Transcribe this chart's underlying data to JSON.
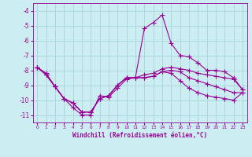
{
  "xlabel": "Windchill (Refroidissement éolien,°C)",
  "bg_color": "#cceef2",
  "grid_color": "#aad8de",
  "line_color": "#990099",
  "xlim": [
    -0.5,
    23.5
  ],
  "ylim": [
    -11.5,
    -3.5
  ],
  "yticks": [
    -11,
    -10,
    -9,
    -8,
    -7,
    -6,
    -5,
    -4
  ],
  "xticks": [
    0,
    1,
    2,
    3,
    4,
    5,
    6,
    7,
    8,
    9,
    10,
    11,
    12,
    13,
    14,
    15,
    16,
    17,
    18,
    19,
    20,
    21,
    22,
    23
  ],
  "line1_x": [
    0,
    1,
    2,
    3,
    4,
    5,
    6,
    7,
    8,
    9,
    10,
    11,
    12,
    13,
    14,
    15,
    16,
    17,
    18,
    19,
    20,
    21,
    22,
    23
  ],
  "line1_y": [
    -7.8,
    -8.2,
    -9.1,
    -9.9,
    -10.5,
    -11.0,
    -11.0,
    -9.7,
    -9.8,
    -9.2,
    -8.6,
    -8.5,
    -5.2,
    -4.8,
    -4.3,
    -6.2,
    -7.0,
    -7.1,
    -7.5,
    -8.0,
    -8.0,
    -8.1,
    -8.5,
    -9.3
  ],
  "line2_x": [
    0,
    1,
    2,
    3,
    4,
    5,
    6,
    7,
    8,
    9,
    10,
    11,
    12,
    13,
    14,
    15,
    16,
    17,
    18,
    19,
    20,
    21,
    22,
    23
  ],
  "line2_y": [
    -7.8,
    -8.3,
    -9.1,
    -9.9,
    -10.2,
    -10.8,
    -10.8,
    -9.9,
    -9.7,
    -9.0,
    -8.5,
    -8.5,
    -8.3,
    -8.2,
    -7.9,
    -7.8,
    -7.9,
    -8.0,
    -8.2,
    -8.3,
    -8.4,
    -8.5,
    -8.6,
    -9.3
  ],
  "line3_x": [
    0,
    1,
    2,
    3,
    4,
    5,
    6,
    7,
    8,
    9,
    10,
    11,
    12,
    13,
    14,
    15,
    16,
    17,
    18,
    19,
    20,
    21,
    22,
    23
  ],
  "line3_y": [
    -7.8,
    -8.3,
    -9.1,
    -9.9,
    -10.2,
    -10.8,
    -10.8,
    -9.9,
    -9.7,
    -9.0,
    -8.5,
    -8.5,
    -8.5,
    -8.4,
    -8.1,
    -8.0,
    -8.1,
    -8.5,
    -8.7,
    -8.9,
    -9.1,
    -9.3,
    -9.5,
    -9.5
  ],
  "line4_x": [
    0,
    1,
    2,
    3,
    4,
    5,
    6,
    7,
    8,
    9,
    10,
    11,
    12,
    13,
    14,
    15,
    16,
    17,
    18,
    19,
    20,
    21,
    22,
    23
  ],
  "line4_y": [
    -7.8,
    -8.3,
    -9.1,
    -9.9,
    -10.2,
    -10.8,
    -10.8,
    -9.9,
    -9.7,
    -9.0,
    -8.5,
    -8.5,
    -8.5,
    -8.4,
    -8.1,
    -8.2,
    -8.7,
    -9.2,
    -9.5,
    -9.7,
    -9.8,
    -9.9,
    -10.0,
    -9.5
  ]
}
